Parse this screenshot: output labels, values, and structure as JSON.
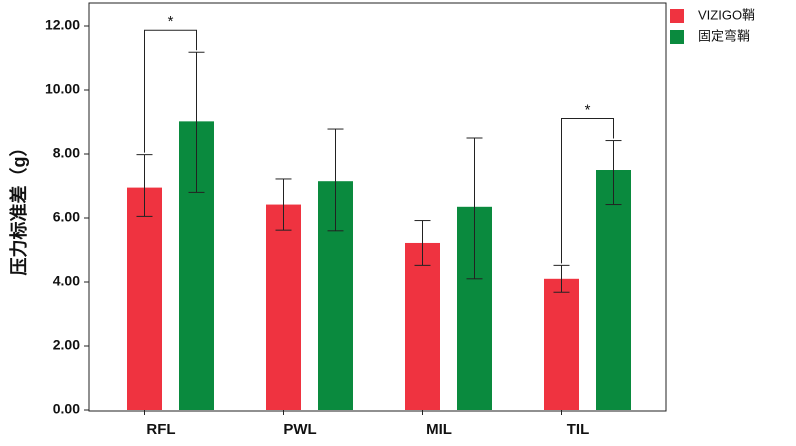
{
  "chart_data": {
    "type": "bar",
    "title": "",
    "xlabel": "",
    "ylabel": "压力标准差（g）",
    "ylim": [
      0,
      12
    ],
    "yticks": [
      "0.00",
      "2.00",
      "4.00",
      "6.00",
      "8.00",
      "10.00",
      "12.00"
    ],
    "categories": [
      "RFL",
      "PWL",
      "MIL",
      "TIL"
    ],
    "series": [
      {
        "name": "VIZIGO鞘",
        "color": "#ef3340",
        "values": [
          6.95,
          6.42,
          5.22,
          4.1
        ],
        "err_low": [
          6.05,
          5.62,
          4.52,
          3.68
        ],
        "err_high": [
          7.98,
          7.22,
          5.92,
          4.52
        ]
      },
      {
        "name": "固定弯鞘",
        "color": "#0a8a3e",
        "values": [
          9.02,
          7.15,
          6.35,
          7.5
        ],
        "err_low": [
          6.8,
          5.6,
          4.1,
          6.42
        ],
        "err_high": [
          11.18,
          8.78,
          8.5,
          8.42
        ]
      }
    ],
    "significance": [
      {
        "category": "RFL",
        "label": "*"
      },
      {
        "category": "TIL",
        "label": "*"
      }
    ],
    "legend": "top-right",
    "grid": false
  }
}
